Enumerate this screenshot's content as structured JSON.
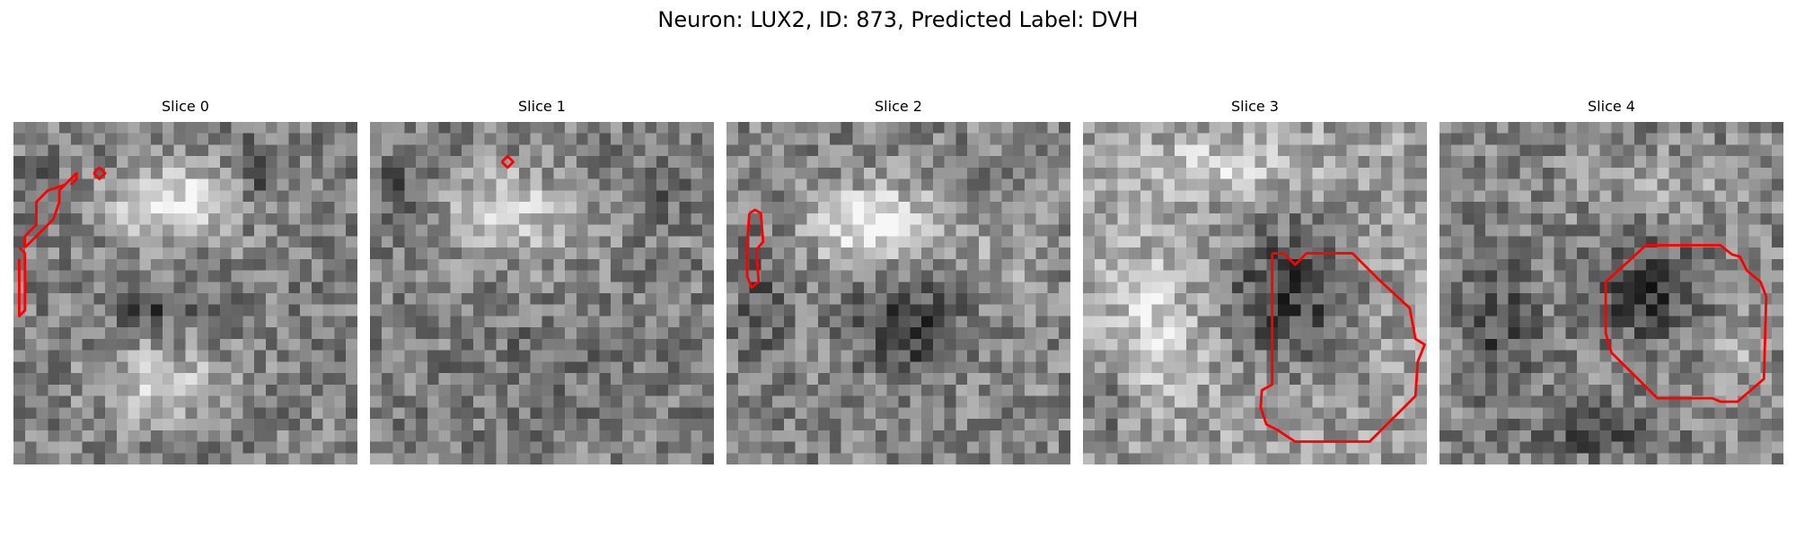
{
  "figure": {
    "title": "Neuron: LUX2, ID: 873, Predicted Label: DVH",
    "contour_color": "#ff0000",
    "colormap": "grayscale"
  },
  "slices": [
    {
      "title": "Slice 0"
    },
    {
      "title": "Slice 1"
    },
    {
      "title": "Slice 2"
    },
    {
      "title": "Slice 3"
    },
    {
      "title": "Slice 4"
    }
  ]
}
